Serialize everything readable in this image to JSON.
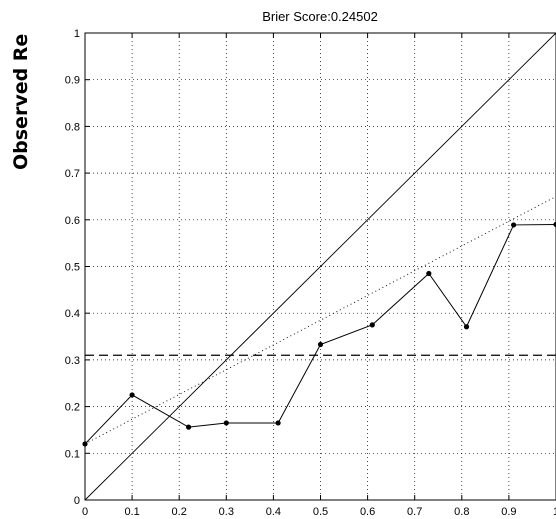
{
  "chart_data": {
    "type": "line",
    "title": "Brier Score:0.24502",
    "ylabel": "Observed Re",
    "xlabel": "",
    "xlim": [
      0,
      1
    ],
    "ylim": [
      0,
      1
    ],
    "grid": true,
    "x_ticks": [
      "0",
      "0.1",
      "0.2",
      "0.3",
      "0.4",
      "0.5",
      "0.6",
      "0.7",
      "0.8",
      "0.9",
      "1"
    ],
    "y_ticks": [
      "0",
      "0.1",
      "0.2",
      "0.3",
      "0.4",
      "0.5",
      "0.6",
      "0.7",
      "0.8",
      "0.9",
      "1"
    ],
    "series": [
      {
        "style": "solid-with-markers",
        "x": [
          0.0,
          0.1,
          0.22,
          0.3,
          0.41,
          0.5,
          0.61,
          0.73,
          0.81,
          0.91,
          1.0
        ],
        "y": [
          0.12,
          0.225,
          0.156,
          0.165,
          0.165,
          0.333,
          0.375,
          0.485,
          0.371,
          0.589,
          0.59
        ]
      }
    ],
    "reference_lines": [
      {
        "style": "solid",
        "x": [
          0,
          1
        ],
        "y": [
          0,
          1
        ]
      },
      {
        "style": "dotted",
        "x": [
          0,
          1
        ],
        "y": [
          0.12,
          0.65
        ]
      },
      {
        "style": "dashed",
        "x": [
          0,
          1
        ],
        "y": [
          0.31,
          0.31
        ]
      }
    ]
  }
}
